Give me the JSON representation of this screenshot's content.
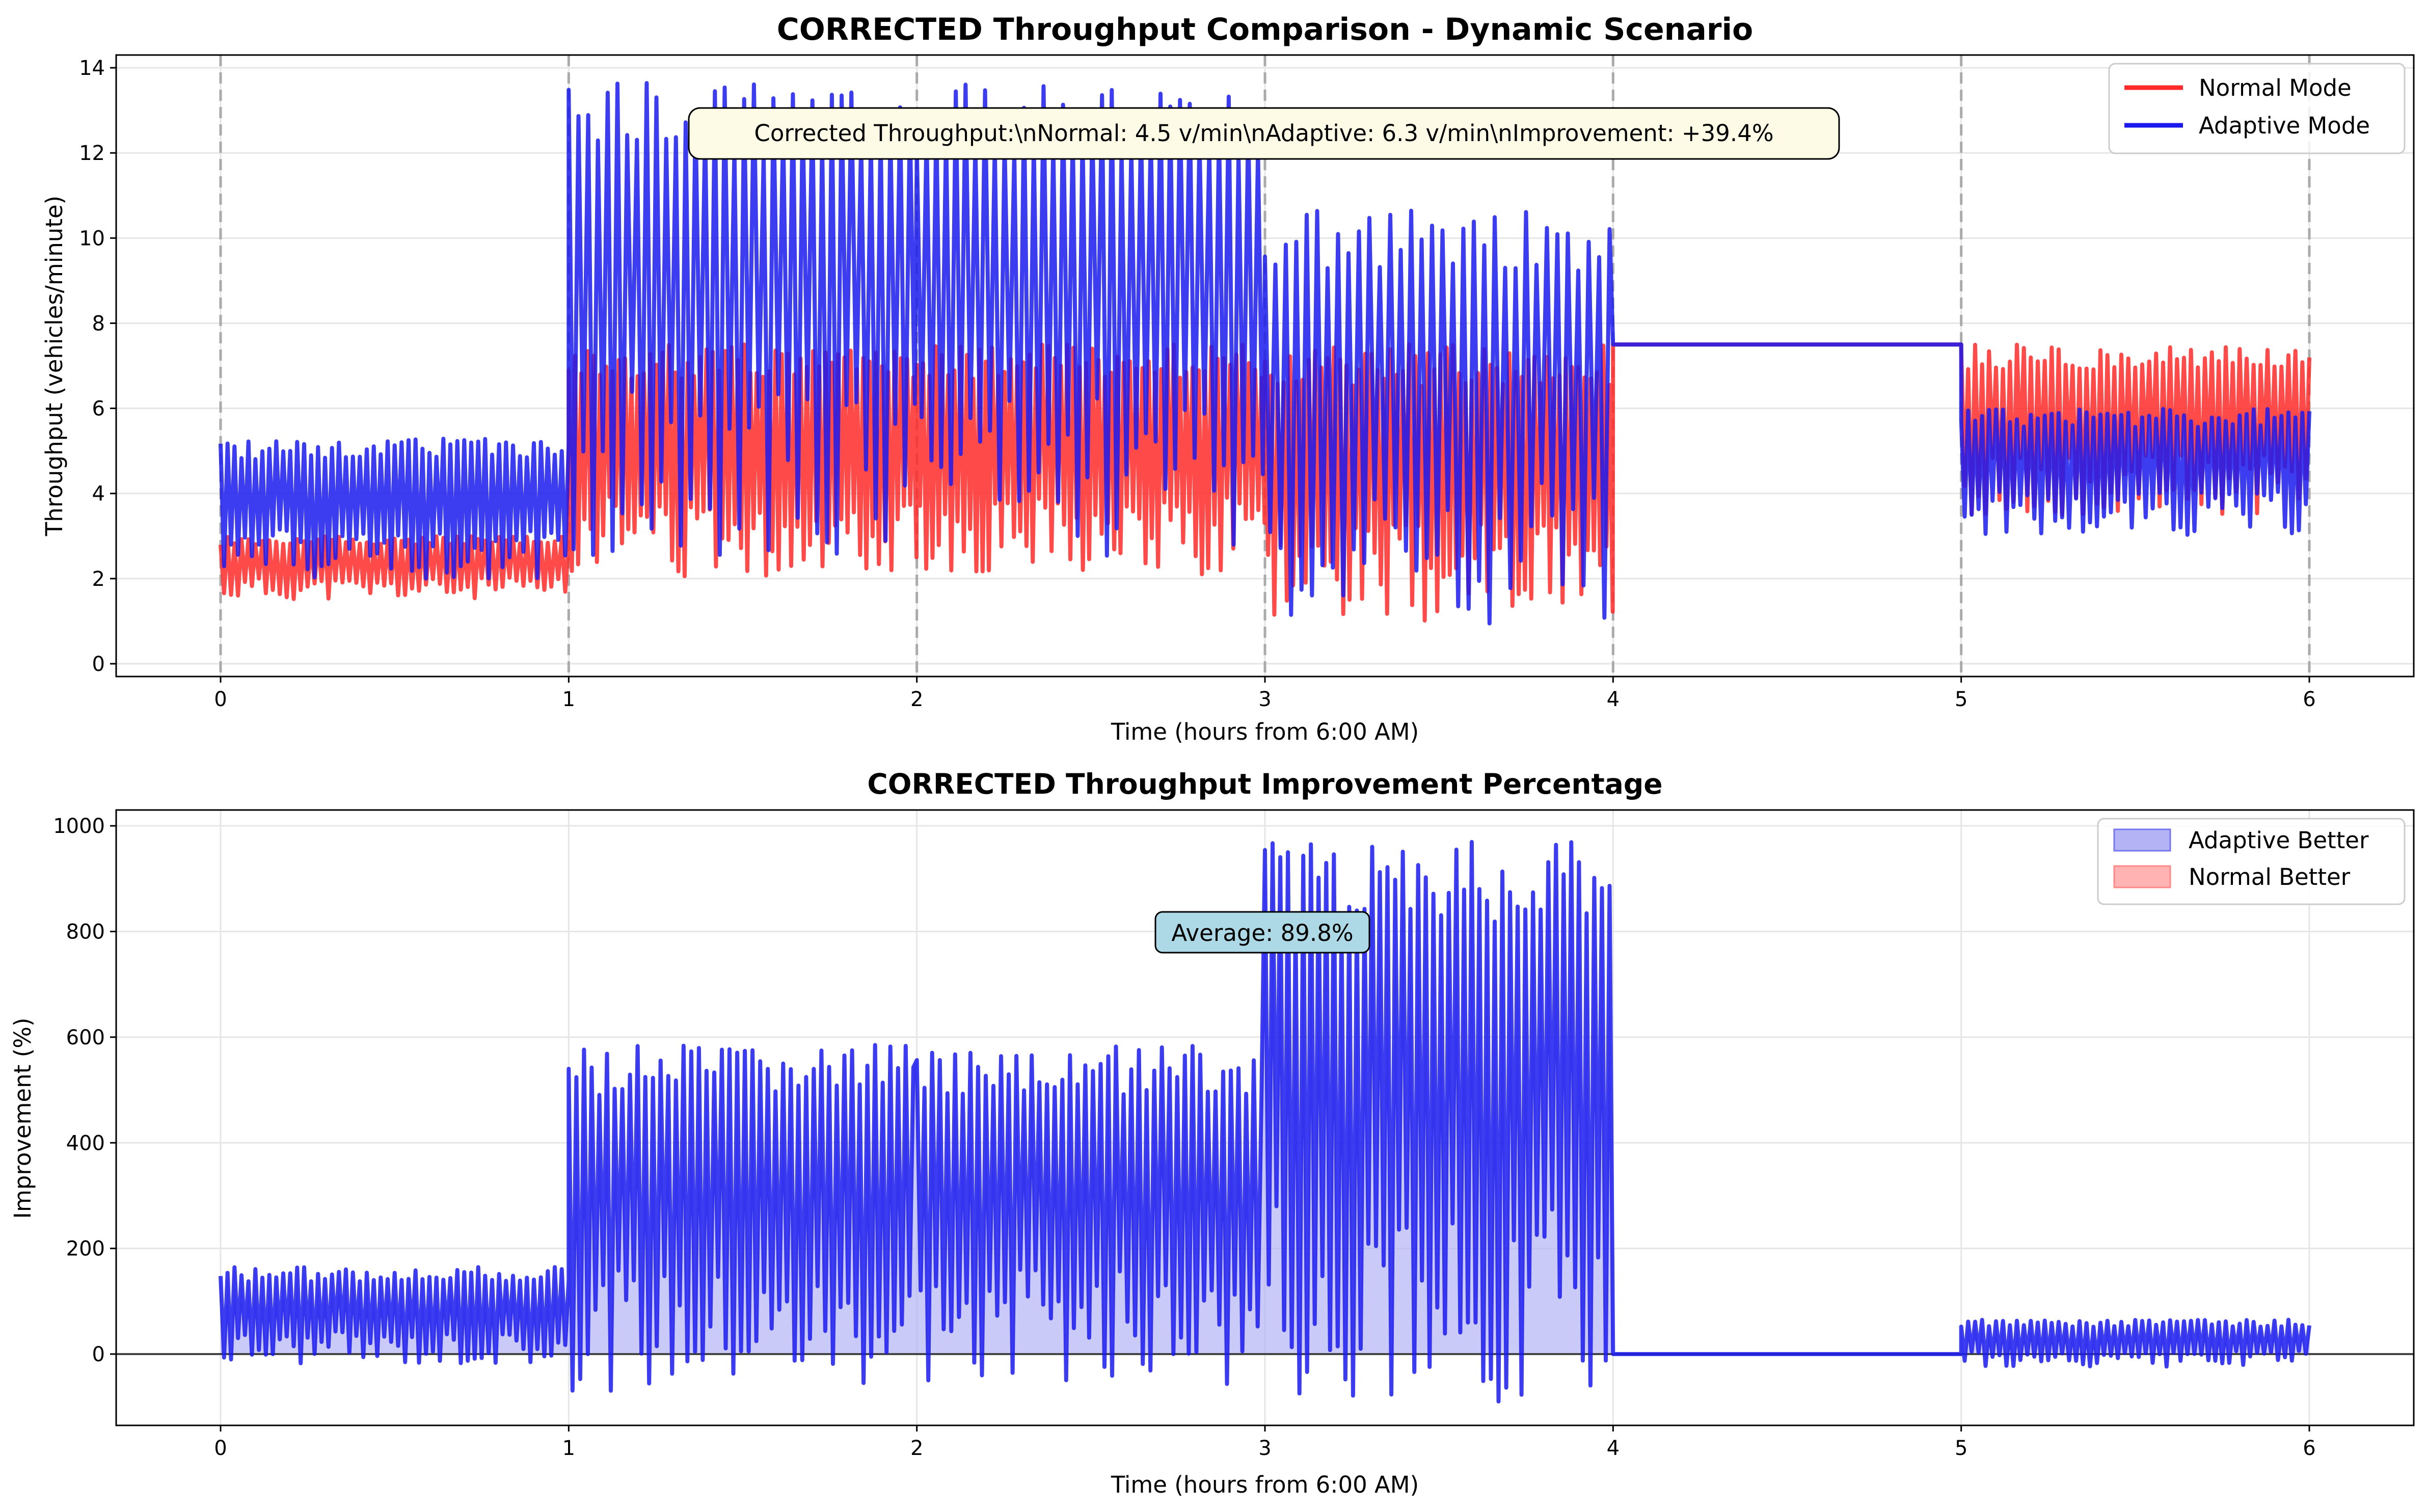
{
  "chart_data": [
    {
      "type": "line",
      "title": "CORRECTED Throughput Comparison - Dynamic Scenario",
      "xlabel": "Time (hours from 6:00 AM)",
      "ylabel": "Throughput (vehicles/minute)",
      "xlim": [
        -0.3,
        6.3
      ],
      "ylim": [
        -0.3,
        14.3
      ],
      "xticks": [
        0,
        1,
        2,
        3,
        4,
        5,
        6
      ],
      "yticks": [
        0,
        2,
        4,
        6,
        8,
        10,
        12,
        14
      ],
      "grid": true,
      "legend_position": "top-right",
      "vertical_dashed_lines_at": [
        0,
        1,
        2,
        3,
        4,
        5,
        6
      ],
      "annotation": "Corrected Throughput:\\nNormal: 4.5 v/min\\nAdaptive: 6.3 v/min\\nImprovement: +39.4%",
      "series": [
        {
          "name": "Normal Mode",
          "color": "#ff2a2a",
          "segments": [
            {
              "start": 0,
              "end": 1,
              "low": 1.5,
              "high": 3.0,
              "period": 0.02,
              "seed": 11
            },
            {
              "start": 1,
              "end": 2,
              "low": 2.0,
              "high": 7.5,
              "period": 0.018,
              "seed": 12
            },
            {
              "start": 2,
              "end": 3,
              "low": 2.0,
              "high": 7.5,
              "period": 0.018,
              "seed": 13
            },
            {
              "start": 3,
              "end": 4,
              "low": 1.0,
              "high": 7.5,
              "period": 0.018,
              "seed": 14
            },
            {
              "start": 4,
              "end": 5,
              "constant": 7.5
            },
            {
              "start": 5,
              "end": 6,
              "low": 3.5,
              "high": 7.5,
              "period": 0.02,
              "seed": 15
            }
          ]
        },
        {
          "name": "Adaptive Mode",
          "color": "#1a1aee",
          "segments": [
            {
              "start": 0,
              "end": 1,
              "low": 2.0,
              "high": 5.3,
              "period": 0.02,
              "seed": 21
            },
            {
              "start": 1,
              "end": 2,
              "low": 2.5,
              "high": 13.65,
              "period": 0.028,
              "seed": 22
            },
            {
              "start": 2,
              "end": 3,
              "low": 2.5,
              "high": 13.65,
              "period": 0.028,
              "seed": 23
            },
            {
              "start": 3,
              "end": 4,
              "low": 0.9,
              "high": 10.7,
              "period": 0.03,
              "seed": 24
            },
            {
              "start": 4,
              "end": 5,
              "constant": 7.5
            },
            {
              "start": 5,
              "end": 6,
              "low": 3.0,
              "high": 6.0,
              "period": 0.02,
              "seed": 25
            }
          ]
        }
      ]
    },
    {
      "type": "area",
      "title": "CORRECTED Throughput Improvement Percentage",
      "xlabel": "Time (hours from 6:00 AM)",
      "ylabel": "Improvement (%)",
      "xlim": [
        -0.3,
        6.3
      ],
      "ylim": [
        -135,
        1030
      ],
      "xticks": [
        0,
        1,
        2,
        3,
        4,
        5,
        6
      ],
      "yticks": [
        0,
        200,
        400,
        600,
        800,
        1000
      ],
      "grid": true,
      "legend_position": "top-right",
      "zero_line": true,
      "annotation": "Average: 89.8%",
      "legend": [
        {
          "name": "Adaptive Better",
          "color": "#b3b3f5"
        },
        {
          "name": "Normal Better",
          "color": "#ffb3b3"
        }
      ],
      "series": [
        {
          "name": "Improvement",
          "color": "#1a1aee",
          "fill_positive": "#b3b3f5",
          "fill_negative": "#ffb3b3",
          "segments": [
            {
              "start": 0,
              "end": 1,
              "low": -20,
              "high": 165,
              "period": 0.02,
              "seed": 31
            },
            {
              "start": 1,
              "end": 2,
              "low": -70,
              "high": 585,
              "period": 0.022,
              "seed": 32
            },
            {
              "start": 2,
              "end": 3,
              "low": -60,
              "high": 585,
              "period": 0.022,
              "seed": 33
            },
            {
              "start": 3,
              "end": 4,
              "low": -90,
              "high": 975,
              "period": 0.022,
              "seed": 34
            },
            {
              "start": 4,
              "end": 5,
              "constant": 0
            },
            {
              "start": 5,
              "end": 6,
              "low": -25,
              "high": 65,
              "period": 0.02,
              "seed": 35
            }
          ]
        }
      ]
    }
  ]
}
